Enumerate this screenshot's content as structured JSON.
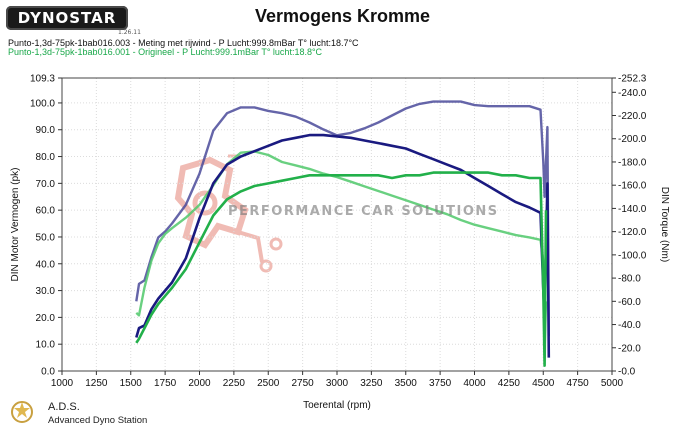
{
  "header": {
    "logo_text": "DYNOSTAR",
    "logo_sub": "1.26.11",
    "title": "Vermogens Kromme"
  },
  "runs": [
    {
      "label": "Punto-1,3d-75pk-1bab016.003 - Meting met rijwind  - P Lucht:999.8mBar T° lucht:18.7°C",
      "color": "#1a1a80"
    },
    {
      "label": "Punto-1,3d-75pk-1bab016.001 - Origineel  - P Lucht:999.1mBar T° lucht:18.8°C",
      "color": "#22b04a"
    }
  ],
  "watermark": "PERFORMANCE CAR SOLUTIONS",
  "footer": {
    "brand": "A.D.S.",
    "subtitle": "Advanced Dyno Station"
  },
  "chart_data": {
    "type": "line",
    "title": "Vermogens Kromme",
    "xlabel": "Toerental (rpm)",
    "ylabel_left": "DIN Motor Vermogen (pk)",
    "ylabel_right": "DIN Torque (Nm)",
    "xlim": [
      1000,
      5000
    ],
    "x_ticks": [
      1000,
      1250,
      1500,
      1750,
      2000,
      2250,
      2500,
      2750,
      3000,
      3250,
      3500,
      3750,
      4000,
      4250,
      4500,
      4750,
      5000
    ],
    "ylim_left": [
      0,
      109.3
    ],
    "y_ticks_left": [
      "0.0",
      "10.0",
      "20.0",
      "30.0",
      "40.0",
      "50.0",
      "60.0",
      "70.0",
      "80.0",
      "90.0",
      "100.0",
      "109.3"
    ],
    "ylim_right": [
      0,
      252.3
    ],
    "y_ticks_right": [
      "0.0",
      "20.0",
      "40.0",
      "60.0",
      "80.0",
      "100.0",
      "120.0",
      "140.0",
      "160.0",
      "180.0",
      "200.0",
      "220.0",
      "240.0",
      "252.3"
    ],
    "grid": true,
    "series": [
      {
        "name": "Punto-1,3d-75pk-1bab016.003 - Meting met rijwind",
        "quantity": "power",
        "axis": "left",
        "color": "#1a1a80",
        "x": [
          1540,
          1560,
          1600,
          1650,
          1700,
          1750,
          1800,
          1900,
          2000,
          2100,
          2200,
          2300,
          2400,
          2500,
          2600,
          2700,
          2800,
          2900,
          3000,
          3100,
          3200,
          3300,
          3400,
          3500,
          3600,
          3700,
          3800,
          3900,
          4000,
          4100,
          4200,
          4300,
          4400,
          4480,
          4500,
          4510,
          4530,
          4540
        ],
        "values": [
          12.5,
          16,
          17,
          23,
          27,
          30,
          33,
          42,
          57,
          70,
          77,
          80,
          82,
          84,
          86,
          87,
          88,
          88,
          87.5,
          87,
          86,
          85,
          84,
          83,
          81,
          79,
          77,
          75,
          72,
          69,
          66,
          63,
          61,
          59,
          30,
          20,
          70,
          5
        ]
      },
      {
        "name": "Punto-1,3d-75pk-1bab016.003 - Meting met rijwind",
        "quantity": "torque",
        "axis": "right",
        "color": "#1a1a80",
        "x": [
          1540,
          1560,
          1600,
          1650,
          1700,
          1750,
          1800,
          1900,
          2000,
          2100,
          2200,
          2300,
          2400,
          2500,
          2600,
          2700,
          2800,
          2900,
          3000,
          3100,
          3200,
          3300,
          3400,
          3500,
          3600,
          3700,
          3800,
          3900,
          4000,
          4100,
          4200,
          4300,
          4400,
          4480,
          4500,
          4510,
          4530,
          4540
        ],
        "values": [
          60,
          75,
          78,
          98,
          115,
          120,
          127,
          143,
          170,
          207,
          222,
          227,
          227,
          224,
          222,
          219,
          214,
          208,
          203,
          205,
          209,
          214,
          220,
          226,
          230,
          232,
          232,
          232,
          229,
          228,
          228,
          228,
          228,
          225,
          180,
          150,
          210,
          30
        ]
      },
      {
        "name": "Punto-1,3d-75pk-1bab016.001 - Origineel",
        "quantity": "power",
        "axis": "left",
        "color": "#22b04a",
        "x": [
          1540,
          1560,
          1600,
          1650,
          1700,
          1750,
          1800,
          1900,
          2000,
          2100,
          2200,
          2300,
          2400,
          2500,
          2600,
          2700,
          2800,
          2900,
          3000,
          3100,
          3200,
          3300,
          3400,
          3500,
          3600,
          3700,
          3800,
          3900,
          4000,
          4100,
          4200,
          4300,
          4400,
          4480,
          4500,
          4510,
          4520
        ],
        "values": [
          10.5,
          12,
          16,
          21,
          25,
          28,
          31,
          38,
          48,
          58,
          64,
          67,
          69,
          70,
          71,
          72,
          73,
          73,
          73,
          73,
          73,
          73,
          72,
          73,
          73,
          74,
          74,
          74,
          74,
          74,
          73,
          73,
          72,
          72,
          30,
          2,
          60
        ]
      },
      {
        "name": "Punto-1,3d-75pk-1bab016.001 - Origineel",
        "quantity": "torque",
        "axis": "right",
        "color": "#22b04a",
        "x": [
          1540,
          1560,
          1600,
          1650,
          1700,
          1750,
          1800,
          1900,
          2000,
          2100,
          2200,
          2300,
          2400,
          2500,
          2600,
          2700,
          2800,
          2900,
          3000,
          3100,
          3200,
          3300,
          3400,
          3500,
          3600,
          3700,
          3800,
          3900,
          4000,
          4100,
          4200,
          4300,
          4400,
          4480,
          4500,
          4510,
          4520
        ],
        "values": [
          50,
          48,
          72,
          95,
          110,
          118,
          123,
          132,
          143,
          160,
          178,
          188,
          189,
          186,
          180,
          177,
          174,
          170,
          167,
          163,
          159,
          155,
          151,
          147,
          143,
          139,
          135,
          130,
          126,
          123,
          120,
          117,
          115,
          113,
          95,
          20,
          60
        ]
      }
    ]
  }
}
